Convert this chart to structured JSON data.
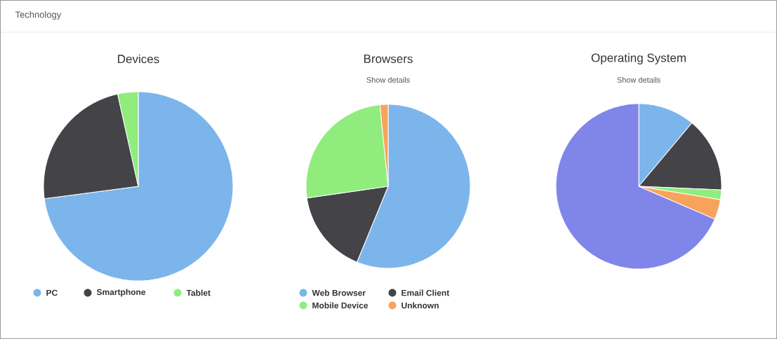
{
  "chart_data": [
    {
      "type": "pie",
      "title": "Devices",
      "annotations": [
        "Technology"
      ],
      "categories": [
        "PC",
        "Smartphone",
        "Tablet"
      ],
      "values": [
        72.9,
        23.6,
        3.5
      ],
      "colors": [
        "#7cb5ec",
        "#434348",
        "#90ed7d"
      ],
      "legend": "bottom"
    },
    {
      "type": "pie",
      "title": "Browsers",
      "subtitle": "Show details",
      "categories": [
        "Web Browser",
        "Email Client",
        "Mobile Device",
        "Unknown"
      ],
      "values": [
        56.2,
        16.5,
        25.7,
        1.6
      ],
      "colors": [
        "#7cb5ec",
        "#434348",
        "#90ed7d",
        "#f7a35c"
      ],
      "legend": "bottom"
    },
    {
      "type": "pie",
      "title": "Operating System",
      "subtitle": "Show details",
      "categories": [
        null,
        null,
        null,
        null,
        null
      ],
      "values": [
        11.1,
        14.6,
        1.9,
        3.9,
        68.5
      ],
      "colors": [
        "#7cb5ec",
        "#434348",
        "#90ed7d",
        "#f7a35c",
        "#8085e9"
      ]
    }
  ]
}
